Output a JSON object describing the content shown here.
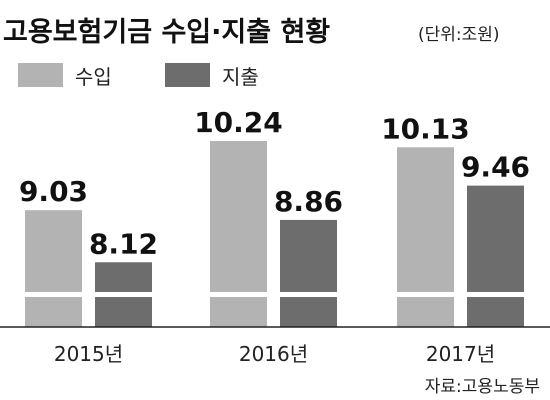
{
  "chart_data": {
    "type": "bar",
    "title": "고용보험기금 수입·지출 현황",
    "unit": "(단위:조원)",
    "categories": [
      "2015년",
      "2016년",
      "2017년"
    ],
    "series": [
      {
        "name": "수입",
        "values": [
          9.03,
          10.24,
          10.13
        ],
        "labels": [
          "9.03",
          "10.24",
          "10.13"
        ],
        "color": "#b3b3b3"
      },
      {
        "name": "지출",
        "values": [
          8.12,
          8.86,
          9.46
        ],
        "labels": [
          "8.12",
          "8.86",
          "9.46"
        ],
        "color": "#6d6d6d"
      }
    ],
    "axis_break": true,
    "legend_position": "top-left",
    "grid": false,
    "source": "자료:고용노동부"
  }
}
